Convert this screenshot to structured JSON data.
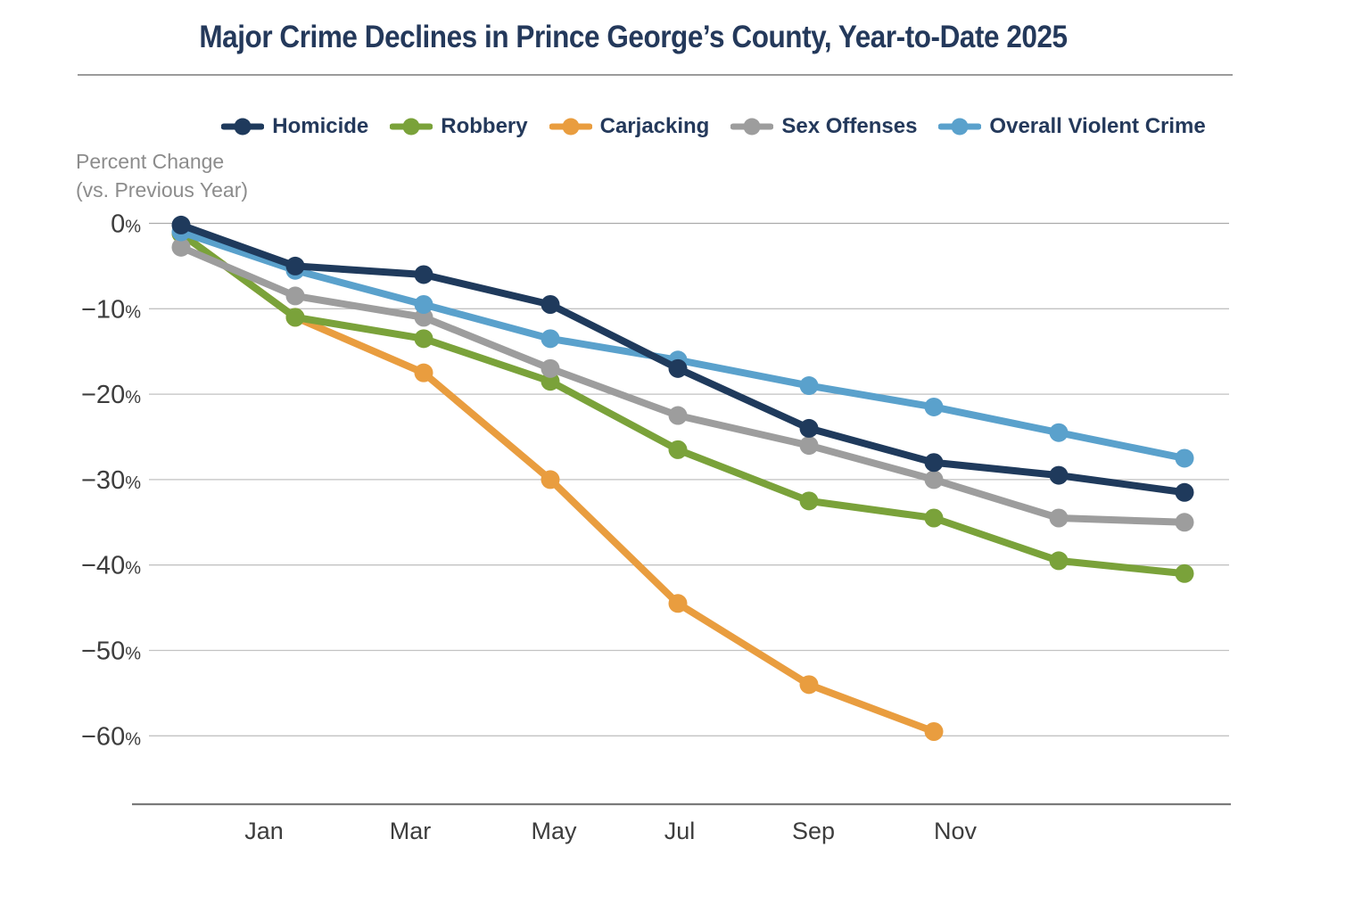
{
  "chart_data": {
    "type": "line",
    "title": "Major Crime Declines in Prince George’s County, Year-to-Date 2025",
    "ylabel": "Percent Change",
    "ylabel_note": "(vs. Previous Year)",
    "x_tick_labels": [
      "Jan",
      "Mar",
      "May",
      "Jul",
      "Sep",
      "Nov"
    ],
    "y_ticks": [
      0,
      -10,
      -20,
      -30,
      -40,
      -50,
      -60
    ],
    "y_tick_suffix": "%",
    "ylim": [
      -65,
      2
    ],
    "grid": true,
    "legend_position": "top",
    "series": [
      {
        "name": "Homicide",
        "color": "#1f3a5c",
        "values": [
          -0.2,
          -5,
          -6,
          -9.5,
          -17,
          -24,
          -28,
          -29.5,
          -31.5
        ]
      },
      {
        "name": "Robbery",
        "color": "#7aa23a",
        "values": [
          -1.2,
          -11,
          -13.5,
          -18.5,
          -26.5,
          -32.5,
          -34.5,
          -39.5,
          -41
        ]
      },
      {
        "name": "Carjacking",
        "color": "#e99d3f",
        "values": [
          -1.2,
          -11,
          -17.5,
          -30,
          -44.5,
          -54,
          -59.5
        ]
      },
      {
        "name": "Sex Offenses",
        "color": "#9d9d9d",
        "values": [
          -2.8,
          -8.5,
          -11,
          -17,
          -22.5,
          -26,
          -30,
          -34.5,
          -35
        ]
      },
      {
        "name": "Overall Violent Crime",
        "color": "#5aa1cc",
        "values": [
          -1,
          -5.5,
          -9.5,
          -13.5,
          -16,
          -19,
          -21.5,
          -24.5,
          -27.5
        ]
      }
    ]
  }
}
